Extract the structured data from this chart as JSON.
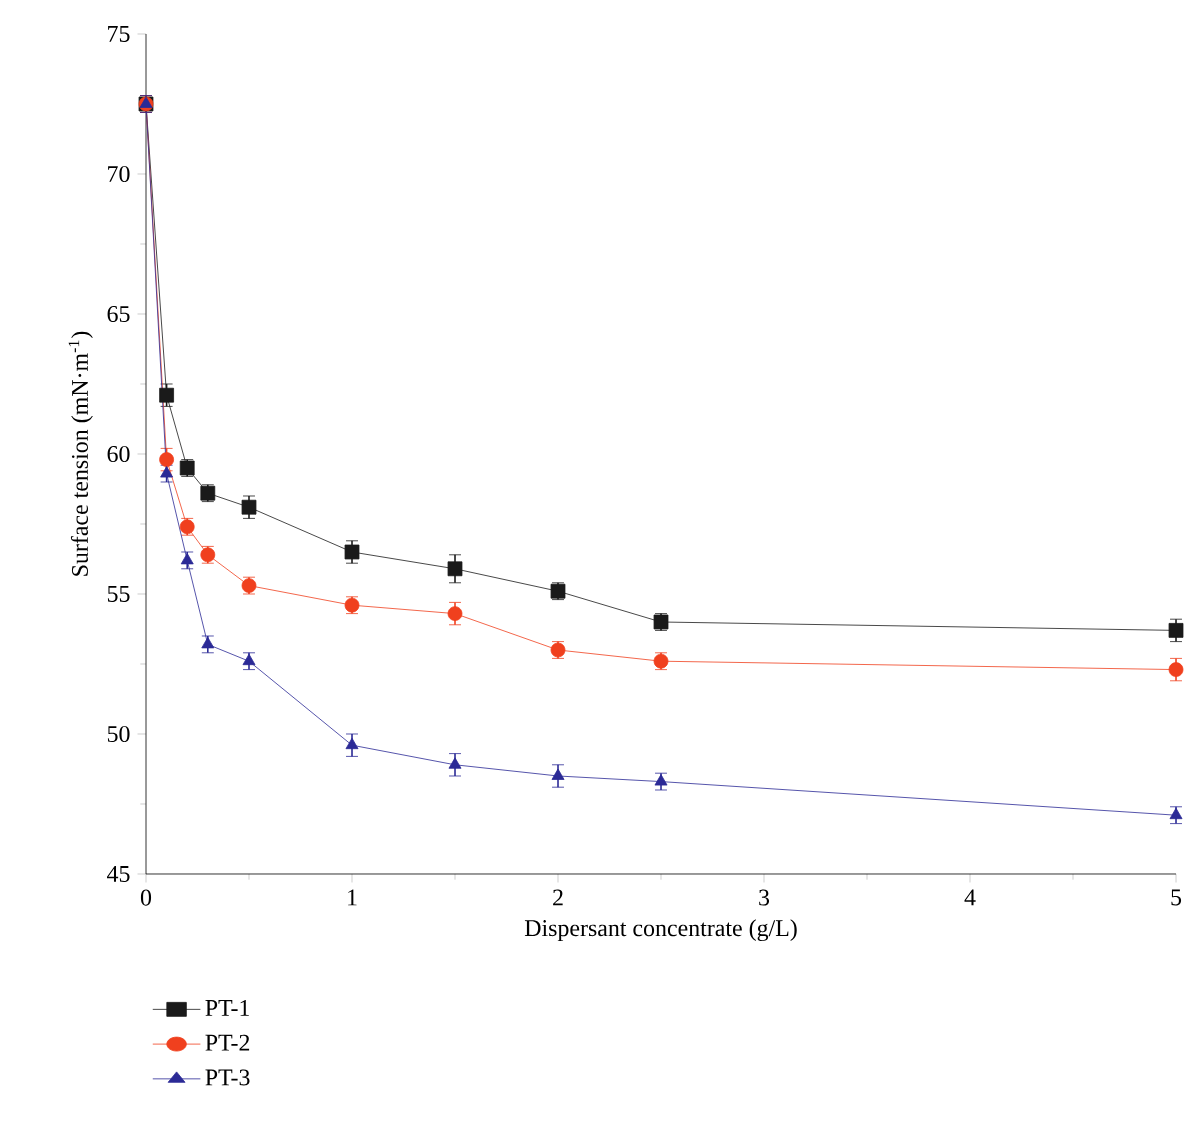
{
  "chart_data": {
    "type": "line",
    "xlabel": "Dispersant concentrate (g/L)",
    "ylabel": "Surface tension (mN·m$^{-1}$)",
    "x": [
      0,
      0.1,
      0.2,
      0.3,
      0.5,
      1,
      1.5,
      2,
      2.5,
      5
    ],
    "series": [
      {
        "name": "PT-1",
        "color": "#1a1a1a",
        "marker": "square",
        "values": [
          72.5,
          62.1,
          59.5,
          58.6,
          58.1,
          56.5,
          55.9,
          55.1,
          54.0,
          53.7
        ],
        "errors": [
          0.3,
          0.4,
          0.3,
          0.3,
          0.4,
          0.4,
          0.5,
          0.3,
          0.3,
          0.4
        ]
      },
      {
        "name": "PT-2",
        "color": "#f0401e",
        "marker": "circle",
        "values": [
          72.5,
          59.8,
          57.4,
          56.4,
          55.3,
          54.6,
          54.3,
          53.0,
          52.6,
          52.3
        ],
        "errors": [
          0.3,
          0.4,
          0.3,
          0.3,
          0.3,
          0.3,
          0.4,
          0.3,
          0.3,
          0.4
        ]
      },
      {
        "name": "PT-3",
        "color": "#2b2a96",
        "marker": "triangle",
        "values": [
          72.5,
          59.3,
          56.2,
          53.2,
          52.6,
          49.6,
          48.9,
          48.5,
          48.3,
          47.1
        ],
        "errors": [
          0.3,
          0.3,
          0.3,
          0.3,
          0.3,
          0.4,
          0.4,
          0.4,
          0.3,
          0.3
        ]
      }
    ],
    "xlim": [
      0,
      5
    ],
    "xticks": [
      0,
      1,
      2,
      3,
      4,
      5
    ],
    "ylim": [
      45,
      75
    ],
    "yticks": [
      45,
      50,
      55,
      60,
      65,
      70,
      75
    ],
    "line_style": "solid",
    "grid": false,
    "legend": "bottom left"
  }
}
